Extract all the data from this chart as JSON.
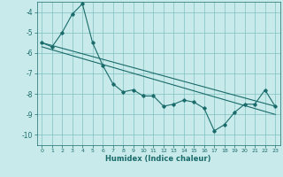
{
  "xlabel": "Humidex (Indice chaleur)",
  "background_color": "#c8eaea",
  "grid_color": "#7fbfbf",
  "line_color": "#1a6b6b",
  "xlim": [
    -0.5,
    23.5
  ],
  "ylim": [
    -10.5,
    -3.5
  ],
  "yticks": [
    -10,
    -9,
    -8,
    -7,
    -6,
    -5,
    -4
  ],
  "xticks": [
    0,
    1,
    2,
    3,
    4,
    5,
    6,
    7,
    8,
    9,
    10,
    11,
    12,
    13,
    14,
    15,
    16,
    17,
    18,
    19,
    20,
    21,
    22,
    23
  ],
  "series1_x": [
    0,
    1,
    2,
    3,
    4,
    5,
    6,
    7,
    8,
    9,
    10,
    11,
    12,
    13,
    14,
    15,
    16,
    17,
    18,
    19,
    20,
    21,
    22,
    23
  ],
  "series1_y": [
    -5.5,
    -5.7,
    -5.0,
    -4.1,
    -3.6,
    -5.5,
    -6.6,
    -7.5,
    -7.9,
    -7.8,
    -8.1,
    -8.1,
    -8.6,
    -8.5,
    -8.3,
    -8.4,
    -8.7,
    -9.8,
    -9.5,
    -8.9,
    -8.5,
    -8.5,
    -7.8,
    -8.6
  ],
  "series2_x": [
    0,
    23
  ],
  "series2_y": [
    -5.5,
    -8.6
  ],
  "series3_x": [
    0,
    23
  ],
  "series3_y": [
    -5.7,
    -9.0
  ]
}
